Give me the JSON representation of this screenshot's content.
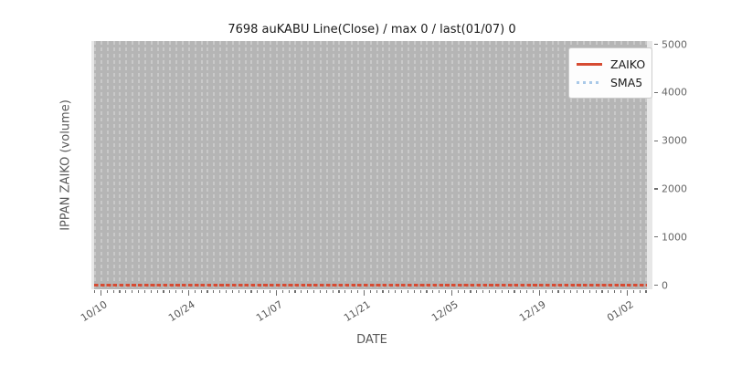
{
  "title": "7698 auKABU Line(Close) / max 0 / last(01/07) 0",
  "axes": {
    "ylabel": "IPPAN ZAIKO (volume)",
    "xlabel": "DATE",
    "y_ticks": [
      "0",
      "1000",
      "2000",
      "3000",
      "4000",
      "5000"
    ],
    "x_ticks": [
      "10/10",
      "10/24",
      "11/07",
      "11/21",
      "12/05",
      "12/19",
      "01/02"
    ]
  },
  "legend": {
    "items": [
      {
        "label": "ZAIKO",
        "style": "solid",
        "color": "#d64b32"
      },
      {
        "label": "SMA5",
        "style": "dotted",
        "color": "#a9c9e8"
      }
    ]
  },
  "colors": {
    "plot_background": "#b5b5b5",
    "plot_margin_band": "#e7e7e7",
    "grid_dash": "#c9c9c9",
    "zaiko_line": "#d64b32",
    "sma5_line": "#a9c9e8",
    "tick_text": "#666666",
    "axis_label_text": "#595959",
    "title_text": "#1a1a1a"
  },
  "chart_data": {
    "type": "line",
    "title": "7698 auKABU Line(Close) / max 0 / last(01/07) 0",
    "xlabel": "DATE",
    "ylabel": "IPPAN ZAIKO (volume)",
    "x_tick_labels": [
      "10/10",
      "10/24",
      "11/07",
      "11/21",
      "12/05",
      "12/19",
      "01/02"
    ],
    "y_tick_values": [
      0,
      1000,
      2000,
      3000,
      4000,
      5000
    ],
    "ylim": [
      0,
      5000
    ],
    "x_range": {
      "start": "10/09",
      "end": "01/07",
      "frequency": "daily"
    },
    "series": [
      {
        "name": "ZAIKO",
        "style": "solid",
        "color": "#d64b32",
        "value_constant": 0,
        "note": "flat line at 0 for every date"
      },
      {
        "name": "SMA5",
        "style": "dotted",
        "color": "#a9c9e8",
        "value_constant": 0,
        "note": "flat dotted line at 0 for every date"
      }
    ],
    "max_value": 0,
    "last_point": {
      "date": "01/07",
      "value": 0
    },
    "legend_position": "upper right",
    "grid": "dense vertical dashed gridlines, one per day"
  }
}
